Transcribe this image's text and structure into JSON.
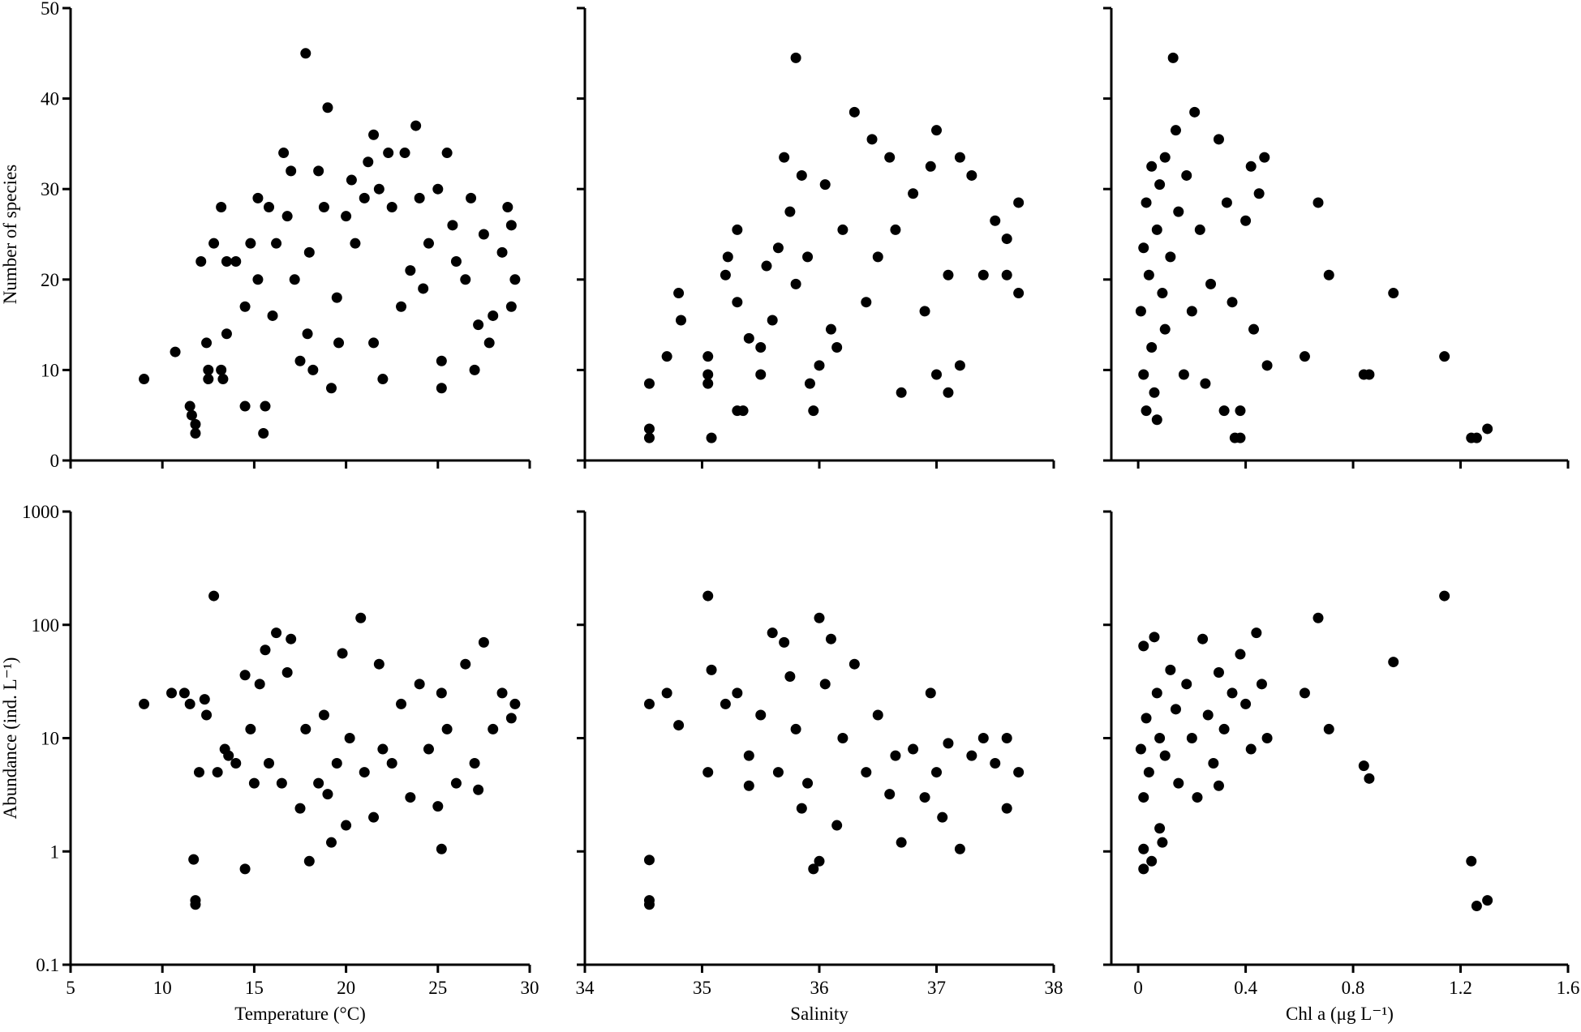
{
  "chart_data": [
    {
      "type": "scatter",
      "ylabel": "Number of species",
      "color": "#000000",
      "log_y": false,
      "show_xtick_labels": false,
      "show_ytick_labels": true,
      "xlim": [
        5,
        30
      ],
      "xticks": [
        5,
        10,
        15,
        20,
        25,
        30
      ],
      "ylim": [
        0,
        50
      ],
      "yticks": [
        0,
        10,
        20,
        30,
        40,
        50
      ],
      "x": [
        9,
        10.7,
        11.5,
        11.6,
        11.8,
        11.8,
        12.1,
        12.4,
        12.5,
        12.5,
        12.8,
        13.2,
        13.2,
        13.3,
        13.5,
        13.5,
        14,
        14.5,
        14.5,
        14.8,
        15.2,
        15.2,
        15.5,
        15.6,
        15.8,
        16,
        16.2,
        16.6,
        16.8,
        17,
        17.2,
        17.5,
        17.8,
        17.9,
        18,
        18.2,
        18.5,
        18.8,
        19,
        19.2,
        19.5,
        19.6,
        20,
        20.3,
        20.5,
        21,
        21.2,
        21.5,
        21.5,
        21.8,
        22,
        22.3,
        22.5,
        23,
        23.2,
        23.5,
        23.8,
        24,
        24.2,
        24.5,
        25,
        25.2,
        25.2,
        25.5,
        25.8,
        26,
        26.5,
        26.8,
        27,
        27.2,
        27.5,
        27.8,
        28,
        28.5,
        28.8,
        29,
        29.2,
        29
      ],
      "values": [
        9,
        12,
        6,
        5,
        4,
        3,
        22,
        13,
        10,
        9,
        24,
        28,
        10,
        9,
        14,
        22,
        22,
        17,
        6,
        24,
        29,
        20,
        3,
        6,
        28,
        16,
        24,
        34,
        27,
        32,
        20,
        11,
        45,
        14,
        23,
        10,
        32,
        28,
        39,
        8,
        18,
        13,
        27,
        31,
        24,
        29,
        33,
        36,
        13,
        30,
        9,
        34,
        28,
        17,
        34,
        21,
        37,
        29,
        19,
        24,
        30,
        11,
        8,
        34,
        26,
        22,
        20,
        29,
        10,
        15,
        25,
        13,
        16,
        23,
        28,
        26,
        20,
        17
      ]
    },
    {
      "type": "scatter",
      "color": "#000000",
      "log_y": false,
      "show_xtick_labels": false,
      "show_ytick_labels": false,
      "xlim": [
        34,
        38
      ],
      "xticks": [
        34,
        35,
        36,
        37,
        38
      ],
      "ylim": [
        0,
        50
      ],
      "yticks": [
        0,
        10,
        20,
        30,
        40,
        50
      ],
      "x": [
        34.55,
        34.55,
        34.55,
        34.7,
        34.8,
        34.82,
        35.05,
        35.05,
        35.05,
        35.08,
        35.2,
        35.22,
        35.3,
        35.3,
        35.3,
        35.35,
        35.4,
        35.5,
        35.5,
        35.55,
        35.6,
        35.65,
        35.7,
        35.75,
        35.8,
        35.8,
        35.85,
        35.9,
        35.92,
        35.95,
        36,
        36.05,
        36.1,
        36.15,
        36.2,
        36.3,
        36.4,
        36.45,
        36.5,
        36.6,
        36.65,
        36.7,
        36.8,
        36.9,
        36.95,
        37,
        37,
        37.1,
        37.1,
        37.2,
        37.2,
        37.3,
        37.4,
        37.5,
        37.6,
        37.6,
        37.7,
        37.7
      ],
      "values": [
        8.5,
        3.5,
        2.5,
        11.5,
        18.5,
        15.5,
        11.5,
        9.5,
        8.5,
        2.5,
        20.5,
        22.5,
        25.5,
        17.5,
        5.5,
        5.5,
        13.5,
        9.5,
        12.5,
        21.5,
        15.5,
        23.5,
        33.5,
        27.5,
        44.5,
        19.5,
        31.5,
        22.5,
        8.5,
        5.5,
        10.5,
        30.5,
        14.5,
        12.5,
        25.5,
        38.5,
        17.5,
        35.5,
        22.5,
        33.5,
        25.5,
        7.5,
        29.5,
        16.5,
        32.5,
        36.5,
        9.5,
        7.5,
        20.5,
        33.5,
        10.5,
        31.5,
        20.5,
        26.5,
        24.5,
        20.5,
        28.5,
        18.5
      ]
    },
    {
      "type": "scatter",
      "color": "#000000",
      "log_y": false,
      "show_xtick_labels": false,
      "show_ytick_labels": false,
      "xlim": [
        -0.1,
        1.6
      ],
      "xticks": [
        0,
        0.4,
        0.8,
        1.2,
        1.6
      ],
      "ylim": [
        0,
        50
      ],
      "yticks": [
        0,
        10,
        20,
        30,
        40,
        50
      ],
      "x": [
        0.01,
        0.02,
        0.02,
        0.03,
        0.03,
        0.04,
        0.05,
        0.05,
        0.06,
        0.07,
        0.07,
        0.08,
        0.09,
        0.1,
        0.1,
        0.12,
        0.13,
        0.14,
        0.15,
        0.17,
        0.18,
        0.2,
        0.21,
        0.23,
        0.25,
        0.27,
        0.3,
        0.32,
        0.33,
        0.35,
        0.36,
        0.38,
        0.38,
        0.4,
        0.42,
        0.43,
        0.45,
        0.47,
        0.48,
        0.62,
        0.67,
        0.71,
        0.84,
        0.86,
        0.95,
        1.14,
        1.24,
        1.26,
        1.3
      ],
      "values": [
        16.5,
        23.5,
        9.5,
        28.5,
        5.5,
        20.5,
        32.5,
        12.5,
        7.5,
        25.5,
        4.5,
        30.5,
        18.5,
        33.5,
        14.5,
        22.5,
        44.5,
        36.5,
        27.5,
        9.5,
        31.5,
        16.5,
        38.5,
        25.5,
        8.5,
        19.5,
        35.5,
        5.5,
        28.5,
        17.5,
        2.5,
        2.5,
        5.5,
        26.5,
        32.5,
        14.5,
        29.5,
        33.5,
        10.5,
        11.5,
        28.5,
        20.5,
        9.5,
        9.5,
        18.5,
        11.5,
        2.5,
        2.5,
        3.5
      ]
    },
    {
      "type": "scatter",
      "ylabel": "Abundance (ind. L⁻¹)",
      "xlabel": "Temperature (°C)",
      "color": "#000000",
      "log_y": true,
      "show_xtick_labels": true,
      "show_ytick_labels": true,
      "xlim": [
        5,
        30
      ],
      "xticks": [
        5,
        10,
        15,
        20,
        25,
        30
      ],
      "ylim": [
        0.1,
        1000
      ],
      "yticks": [
        0.1,
        1,
        10,
        100,
        1000
      ],
      "x": [
        9,
        10.5,
        11.2,
        11.5,
        11.7,
        11.8,
        11.8,
        12,
        12.3,
        12.4,
        12.8,
        13,
        13.4,
        13.6,
        14,
        14.5,
        14.5,
        14.8,
        15,
        15.3,
        15.6,
        15.8,
        16.2,
        16.5,
        16.8,
        17,
        17.5,
        17.8,
        18,
        18.5,
        18.8,
        19,
        19.2,
        19.5,
        19.8,
        20,
        20.2,
        20.8,
        21,
        21.5,
        21.8,
        22,
        22.5,
        23,
        23.5,
        24,
        24.5,
        25,
        25.2,
        25.2,
        25.5,
        26,
        26.5,
        27,
        27.2,
        27.5,
        28,
        28.5,
        29,
        29.2
      ],
      "values": [
        20,
        25,
        25,
        20,
        0.85,
        0.37,
        0.34,
        5,
        22,
        16,
        180,
        5,
        8,
        7,
        6,
        36,
        0.7,
        12,
        4,
        30,
        60,
        6,
        85,
        4,
        38,
        75,
        2.4,
        12,
        0.82,
        4,
        16,
        3.2,
        1.2,
        6,
        56,
        1.7,
        10,
        115,
        5,
        2,
        45,
        8,
        6,
        20,
        3,
        30,
        8,
        2.5,
        1.05,
        25,
        12,
        4,
        45,
        6,
        3.5,
        70,
        12,
        25,
        15,
        20
      ]
    },
    {
      "type": "scatter",
      "xlabel": "Salinity",
      "color": "#000000",
      "log_y": true,
      "show_xtick_labels": true,
      "show_ytick_labels": false,
      "xlim": [
        34,
        38
      ],
      "xticks": [
        34,
        35,
        36,
        37,
        38
      ],
      "ylim": [
        0.1,
        1000
      ],
      "yticks": [
        0.1,
        1,
        10,
        100,
        1000
      ],
      "x": [
        34.55,
        34.55,
        34.55,
        34.55,
        34.7,
        34.8,
        35.05,
        35.08,
        35.05,
        35.2,
        35.3,
        35.4,
        35.4,
        35.5,
        35.6,
        35.65,
        35.7,
        35.75,
        35.8,
        35.85,
        35.9,
        35.95,
        36,
        36,
        36.05,
        36.1,
        36.15,
        36.2,
        36.3,
        36.4,
        36.5,
        36.6,
        36.65,
        36.7,
        36.8,
        36.9,
        36.95,
        37,
        37.05,
        37.1,
        37.2,
        37.3,
        37.4,
        37.5,
        37.6,
        37.6,
        37.7
      ],
      "values": [
        20,
        0.84,
        0.37,
        0.34,
        25,
        13,
        180,
        40,
        5,
        20,
        25,
        7,
        3.8,
        16,
        85,
        5,
        70,
        35,
        12,
        2.4,
        4,
        0.7,
        115,
        0.82,
        30,
        75,
        1.7,
        10,
        45,
        5,
        16,
        3.2,
        7,
        1.2,
        8,
        3,
        25,
        5,
        2,
        9,
        1.05,
        7,
        10,
        6,
        2.4,
        10,
        5
      ]
    },
    {
      "type": "scatter",
      "xlabel": "Chl a (μg L⁻¹)",
      "color": "#000000",
      "log_y": true,
      "show_xtick_labels": true,
      "show_ytick_labels": false,
      "xlim": [
        -0.1,
        1.6
      ],
      "xticks": [
        0,
        0.4,
        0.8,
        1.2,
        1.6
      ],
      "ylim": [
        0.1,
        1000
      ],
      "yticks": [
        0.1,
        1,
        10,
        100,
        1000
      ],
      "x": [
        0.01,
        0.02,
        0.02,
        0.02,
        0.02,
        0.03,
        0.04,
        0.05,
        0.06,
        0.07,
        0.08,
        0.08,
        0.09,
        0.1,
        0.12,
        0.14,
        0.15,
        0.18,
        0.2,
        0.22,
        0.24,
        0.26,
        0.28,
        0.3,
        0.3,
        0.32,
        0.35,
        0.38,
        0.4,
        0.42,
        0.44,
        0.46,
        0.48,
        0.62,
        0.67,
        0.71,
        0.84,
        0.86,
        0.95,
        1.14,
        1.24,
        1.26,
        1.3
      ],
      "values": [
        8,
        3,
        65,
        1.05,
        0.7,
        15,
        5,
        0.82,
        78,
        25,
        1.6,
        10,
        1.2,
        7,
        40,
        18,
        4,
        30,
        10,
        3,
        75,
        16,
        6,
        38,
        3.8,
        12,
        25,
        55,
        20,
        8,
        85,
        30,
        10,
        25,
        115,
        12,
        5.7,
        4.4,
        47,
        180,
        0.82,
        0.33,
        0.37
      ]
    }
  ]
}
